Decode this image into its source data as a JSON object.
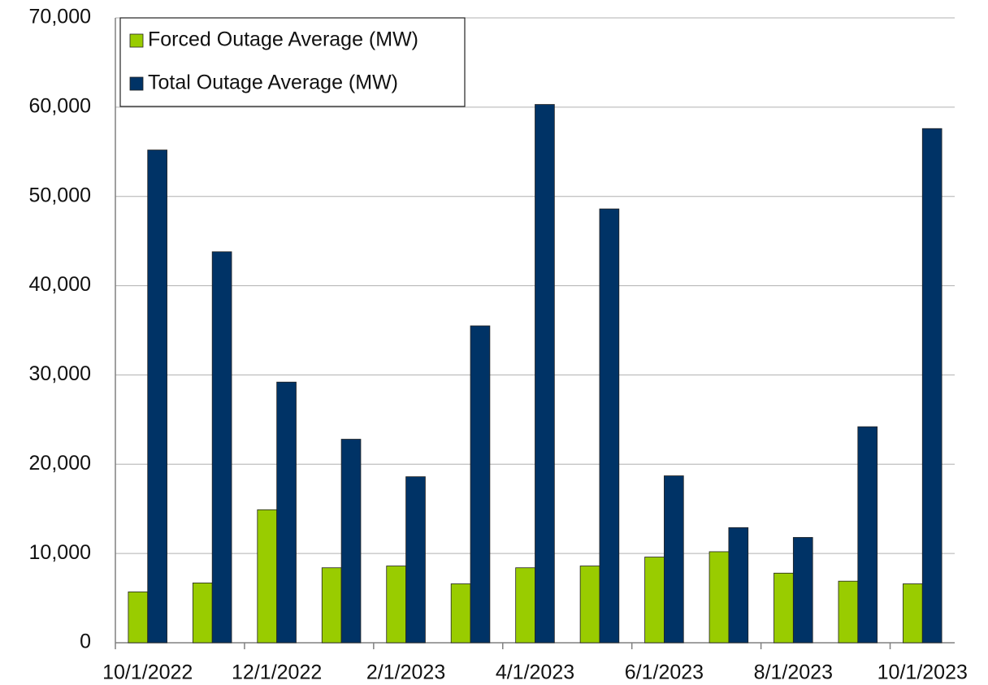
{
  "chart_data": {
    "type": "bar",
    "categories": [
      "10/1/2022",
      null,
      "12/1/2022",
      null,
      "2/1/2023",
      null,
      "4/1/2023",
      null,
      "6/1/2023",
      null,
      "8/1/2023",
      null,
      "10/1/2023"
    ],
    "series": [
      {
        "name": "Forced Outage Average (MW)",
        "color": "#99cc00",
        "values": [
          5700,
          6700,
          14900,
          8400,
          8600,
          6600,
          8400,
          8600,
          9600,
          10200,
          7800,
          6900,
          6600
        ]
      },
      {
        "name": "Total Outage Average (MW)",
        "color": "#003366",
        "values": [
          55200,
          43800,
          29200,
          22800,
          18600,
          35500,
          60300,
          48600,
          18700,
          12900,
          11800,
          24200,
          57600
        ]
      }
    ],
    "ylim": [
      0,
      70000
    ],
    "yticks": [
      0,
      {
        "value": 10000,
        "label": "10,000"
      },
      {
        "value": 20000,
        "label": "20,000"
      },
      {
        "value": 30000,
        "label": "30,000"
      },
      {
        "value": 40000,
        "label": "40,000"
      },
      {
        "value": 50000,
        "label": "50,000"
      },
      {
        "value": 60000,
        "label": "60,000"
      },
      {
        "value": 70000,
        "label": "70,000"
      }
    ],
    "grid": true,
    "legend": "top-left"
  }
}
